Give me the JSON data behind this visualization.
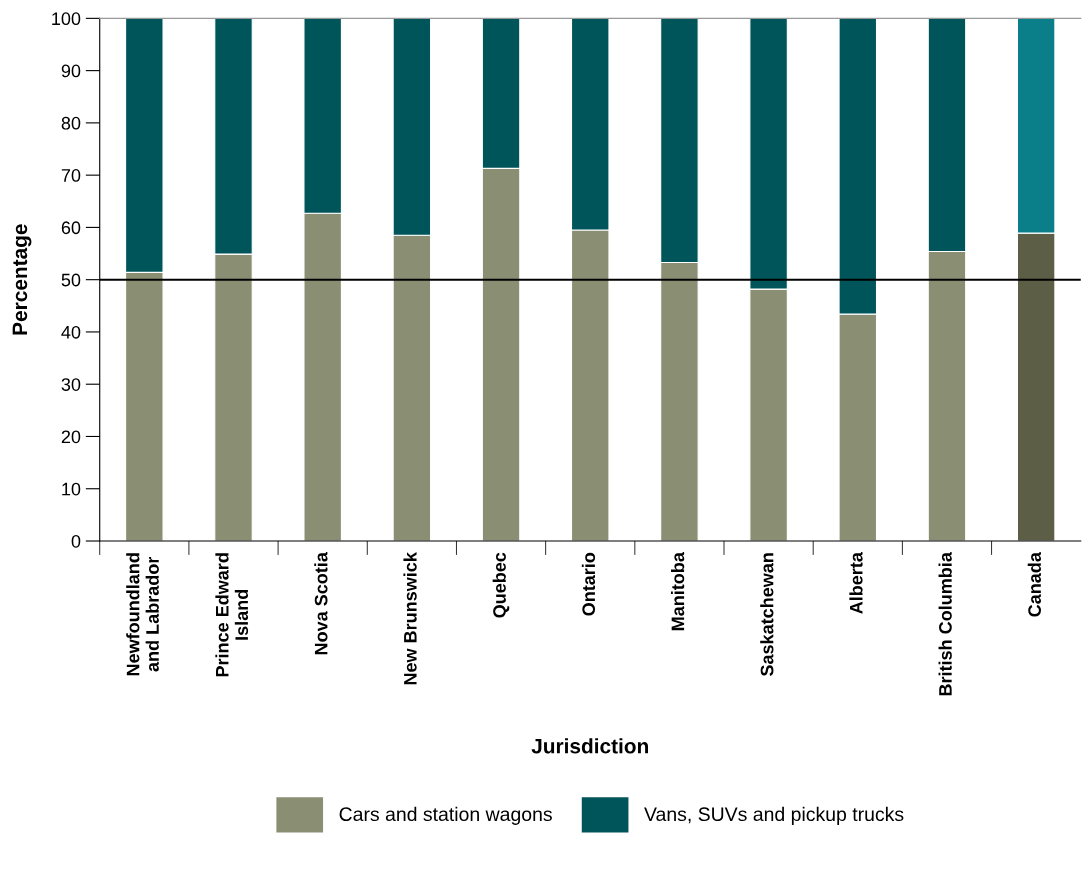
{
  "chart_data": {
    "type": "bar",
    "stacked": true,
    "xlabel": "Jurisdiction",
    "ylabel": "Percentage",
    "categories": [
      "Newfoundland\nand Labrador",
      "Prince Edward\nIsland",
      "Nova Scotia",
      "New Brunswick",
      "Quebec",
      "Ontario",
      "Manitoba",
      "Saskatchewan",
      "Alberta",
      "British Columbia",
      "Canada"
    ],
    "series": [
      {
        "name": "Cars and station wagons",
        "color": "#8a8f74",
        "colors": [
          "#8a8f74",
          "#8a8f74",
          "#8a8f74",
          "#8a8f74",
          "#8a8f74",
          "#8a8f74",
          "#8a8f74",
          "#8a8f74",
          "#8a8f74",
          "#8a8f74",
          "#5c5e45"
        ],
        "values": [
          51.4,
          54.9,
          62.7,
          58.5,
          71.3,
          59.5,
          53.3,
          48.2,
          43.4,
          55.4,
          58.9
        ]
      },
      {
        "name": "Vans, SUVs and pickup trucks",
        "color": "#00555a",
        "colors": [
          "#00555a",
          "#00555a",
          "#00555a",
          "#00555a",
          "#00555a",
          "#00555a",
          "#00555a",
          "#00555a",
          "#00555a",
          "#00555a",
          "#0a7f8a"
        ],
        "values": [
          48.6,
          45.1,
          37.3,
          41.5,
          28.7,
          40.5,
          46.7,
          51.8,
          56.6,
          44.6,
          41.1
        ]
      }
    ],
    "ylim": [
      0,
      100
    ],
    "yticks": [
      0,
      10,
      20,
      30,
      40,
      50,
      60,
      70,
      80,
      90,
      100
    ],
    "ref_lines": [
      {
        "axis": "y",
        "value": 50,
        "color": "#000000"
      }
    ],
    "grid": false,
    "legend": "bottom"
  }
}
